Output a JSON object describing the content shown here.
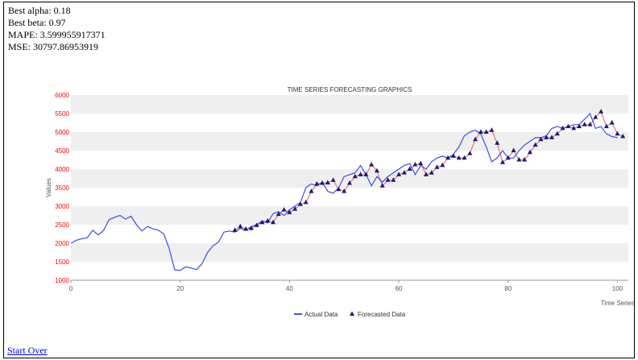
{
  "results": {
    "alpha_text": "Best alpha: 0.18",
    "beta_text": "Best beta: 0.97",
    "mape_text": "MAPE: 3.599955917371",
    "mse_text": "MSE: 30797.86953919"
  },
  "links": {
    "start_over": "Start Over"
  },
  "colors": {
    "actual": "#3a4fe6",
    "forecast": "#f07070",
    "marker": "#1a1a7a",
    "band": "#efefef",
    "ytick": "#ff0000"
  },
  "chart_data": {
    "type": "line",
    "title": "TIME SERIES FORECASTING GRAPHICS",
    "xlabel": "Time Series",
    "ylabel": "Values",
    "xlim": [
      0,
      102
    ],
    "ylim": [
      1000,
      6000
    ],
    "xticks": [
      0,
      20,
      40,
      60,
      80,
      100
    ],
    "yticks": [
      1000,
      1500,
      2000,
      2500,
      3000,
      3500,
      4000,
      4500,
      5000,
      5500,
      6000
    ],
    "legend_position": "bottom",
    "series": [
      {
        "name": "Actual Data",
        "x_start": 0,
        "values": [
          2000,
          2080,
          2120,
          2150,
          2350,
          2220,
          2350,
          2640,
          2700,
          2750,
          2650,
          2730,
          2500,
          2330,
          2450,
          2390,
          2350,
          2250,
          1850,
          1280,
          1270,
          1360,
          1330,
          1290,
          1450,
          1750,
          1930,
          2030,
          2300,
          2330,
          2300,
          2400,
          2350,
          2450,
          2500,
          2600,
          2550,
          2800,
          2850,
          2750,
          2900,
          3000,
          3100,
          3500,
          3600,
          3550,
          3650,
          3400,
          3350,
          3500,
          3800,
          3850,
          3900,
          4100,
          3850,
          3550,
          3800,
          3650,
          3800,
          3900,
          4000,
          4100,
          4150,
          3850,
          4100,
          4000,
          4200,
          4300,
          4350,
          4300,
          4400,
          4600,
          4900,
          5000,
          5050,
          4950,
          4600,
          4200,
          4300,
          4500,
          4300,
          4300,
          4500,
          4650,
          4750,
          4850,
          4850,
          4900,
          5100,
          5150,
          5100,
          5150,
          5200,
          5200,
          5350,
          5500,
          5100,
          5150,
          4950,
          4880,
          4850
        ]
      },
      {
        "name": "Forecasted Data",
        "x_start": 30,
        "values": [
          2350,
          2450,
          2380,
          2400,
          2480,
          2560,
          2600,
          2560,
          2780,
          2900,
          2830,
          2920,
          3050,
          3100,
          3400,
          3600,
          3620,
          3630,
          3700,
          3450,
          3400,
          3620,
          3800,
          3850,
          3850,
          4120,
          3950,
          3550,
          3700,
          3700,
          3850,
          3900,
          4000,
          4120,
          4150,
          3850,
          3900,
          4050,
          4100,
          4300,
          4350,
          4300,
          4300,
          4420,
          4800,
          5000,
          5000,
          5050,
          4700,
          4180,
          4300,
          4500,
          4250,
          4250,
          4450,
          4650,
          4800,
          4850,
          4850,
          4950,
          5100,
          5150,
          5100,
          5150,
          5200,
          5200,
          5400,
          5550,
          5150,
          5250,
          4950,
          4880
        ]
      }
    ]
  }
}
